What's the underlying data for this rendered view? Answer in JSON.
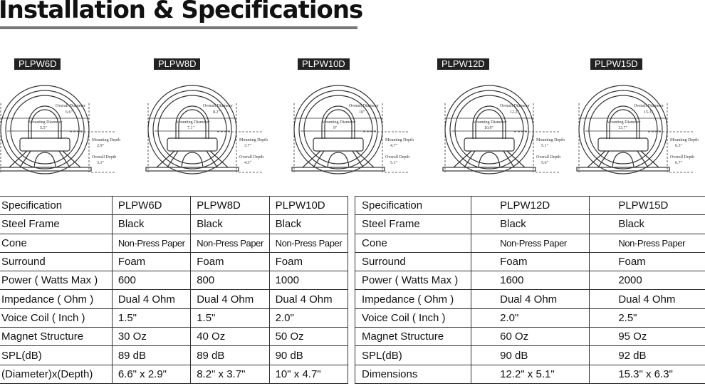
{
  "title": "Installation & Specifications",
  "models": [
    {
      "name": "PLPW6D",
      "overall_diameter": "6.6\"",
      "mounting_diameter": "5.5\"",
      "mounting_depth": "2.9\"",
      "overall_depth": "3.1\""
    },
    {
      "name": "PLPW8D",
      "overall_diameter": "8.2\"",
      "mounting_diameter": "7.1\"",
      "mounting_depth": "3.7\"",
      "overall_depth": "4.3\""
    },
    {
      "name": "PLPW10D",
      "overall_diameter": "10\"",
      "mounting_diameter": "9\"",
      "mounting_depth": "4.7\"",
      "overall_depth": "5.1\""
    },
    {
      "name": "PLPW12D",
      "overall_diameter": "12.2\"",
      "mounting_diameter": "10.9\"",
      "mounting_depth": "5.1\"",
      "overall_depth": "5.6\""
    },
    {
      "name": "PLPW15D",
      "overall_diameter": "15.3\"",
      "mounting_diameter": "13.7\"",
      "mounting_depth": "6.3\"",
      "overall_depth": "6.7\""
    }
  ],
  "diagram_labels": {
    "overall_diameter": "Overall Diameter",
    "mounting_diameter": "Mounting Diameter",
    "mounting_depth": "Mounting Depth",
    "overall_depth": "Overall Depth"
  },
  "table_left": {
    "rows": [
      [
        "Specification",
        "PLPW6D",
        "PLPW8D",
        "PLPW10D"
      ],
      [
        "Steel Frame",
        "Black",
        "Black",
        "Black"
      ],
      [
        "Cone",
        "Non-Press Paper",
        "Non-Press Paper",
        "Non-Press Paper"
      ],
      [
        "Surround",
        "Foam",
        "Foam",
        "Foam"
      ],
      [
        "Power ( Watts Max )",
        "600",
        "800",
        "1000"
      ],
      [
        "Impedance ( Ohm )",
        "Dual 4 Ohm",
        "Dual 4 Ohm",
        "Dual 4 Ohm"
      ],
      [
        "Voice Coil ( Inch )",
        "1.5\"",
        "1.5\"",
        "2.0\""
      ],
      [
        "Magnet Structure",
        "30 Oz",
        "40 Oz",
        "50 Oz"
      ],
      [
        "SPL(dB)",
        "89 dB",
        "89 dB",
        "90 dB"
      ],
      [
        "(Diameter)x(Depth)",
        "6.6\" x 2.9\"",
        "8.2\" x 3.7\"",
        "10\" x 4.7\""
      ]
    ]
  },
  "table_right": {
    "rows": [
      [
        "Specification",
        "PLPW12D",
        "PLPW15D"
      ],
      [
        "Steel Frame",
        "Black",
        "Black"
      ],
      [
        "Cone",
        "Non-Press Paper",
        "Non-Press Paper"
      ],
      [
        "Surround",
        "Foam",
        "Foam"
      ],
      [
        "Power ( Watts Max )",
        "1600",
        "2000"
      ],
      [
        "Impedance ( Ohm )",
        "Dual 4 Ohm",
        "Dual 4 Ohm"
      ],
      [
        "Voice Coil ( Inch )",
        "2.0\"",
        "2.5\""
      ],
      [
        "Magnet Structure",
        "60 Oz",
        "95 Oz"
      ],
      [
        "SPL(dB)",
        "90 dB",
        "92 dB"
      ],
      [
        "Dimensions",
        "12.2\" x 5.1\"",
        "15.3\" x 6.3\""
      ]
    ]
  }
}
